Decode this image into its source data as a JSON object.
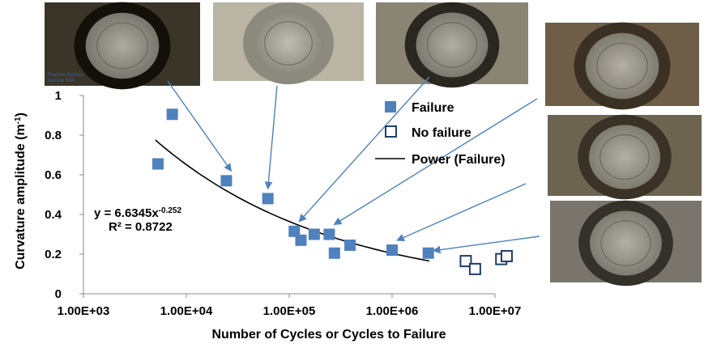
{
  "chart_data": {
    "type": "scatter",
    "title": "",
    "xlabel": "Number of Cycles or Cycles to Failure",
    "ylabel_main": "Curvature amplitude  (m",
    "ylabel_sup": "-1",
    "ylabel_close": ")",
    "x_scale": "log",
    "xlim": [
      1000,
      10000000
    ],
    "ylim": [
      0,
      1
    ],
    "x_ticks": [
      1000,
      10000,
      100000,
      1000000,
      10000000
    ],
    "x_tick_labels": [
      "1.00E+03",
      "1.00E+04",
      "1.00E+05",
      "1.00E+06",
      "1.00E+07"
    ],
    "y_ticks": [
      0,
      0.2,
      0.4,
      0.6,
      0.8,
      1
    ],
    "y_tick_labels": [
      "0",
      "0.2",
      "0.4",
      "0.6",
      "0.8",
      "1"
    ],
    "grid": false,
    "legend_position": "top-right",
    "series": [
      {
        "name": "Failure",
        "marker": "filled-square",
        "color": "#4f81bd",
        "points": [
          [
            5300,
            0.655
          ],
          [
            7300,
            0.905
          ],
          [
            24500,
            0.57
          ],
          [
            62000,
            0.48
          ],
          [
            112000,
            0.315
          ],
          [
            130000,
            0.27
          ],
          [
            175000,
            0.3
          ],
          [
            245000,
            0.3
          ],
          [
            275000,
            0.205
          ],
          [
            390000,
            0.245
          ],
          [
            1000000,
            0.22
          ],
          [
            2250000,
            0.205
          ]
        ]
      },
      {
        "name": "No failure",
        "marker": "open-square",
        "color": "#1f3e6e",
        "points": [
          [
            5200000,
            0.165
          ],
          [
            6400000,
            0.125
          ],
          [
            11500000,
            0.175
          ],
          [
            13000000,
            0.19
          ]
        ]
      },
      {
        "name": "Power (Failure)",
        "marker": "line",
        "color": "#000000",
        "equation": {
          "a": 6.6345,
          "b": -0.252
        },
        "x_range": [
          5000,
          2300000
        ]
      }
    ],
    "annotations": {
      "equation_text": "y = 6.6345x",
      "equation_exponent": "-0.252",
      "r2_text": "R² = 0.8722"
    }
  },
  "photos": [
    {
      "name": "fracture-photo-1",
      "tint": "#3a3528",
      "ring": "#121008",
      "caption_lines": [
        "Fracture Surface",
        "Sample 50A"
      ]
    },
    {
      "name": "fracture-photo-2",
      "tint": "#b9b4a4",
      "ring": "#8c8a7e",
      "caption_lines": []
    },
    {
      "name": "fracture-photo-3",
      "tint": "#8a8474",
      "ring": "#2a2620",
      "caption_lines": []
    },
    {
      "name": "fracture-photo-4",
      "tint": "#6e5e48",
      "ring": "#3b3024",
      "caption_lines": []
    },
    {
      "name": "fracture-photo-5",
      "tint": "#6c6450",
      "ring": "#3a3226",
      "caption_lines": []
    },
    {
      "name": "fracture-photo-6",
      "tint": "#7a756c",
      "ring": "#34302a",
      "caption_lines": []
    }
  ],
  "arrow_color": "#4f81bd"
}
